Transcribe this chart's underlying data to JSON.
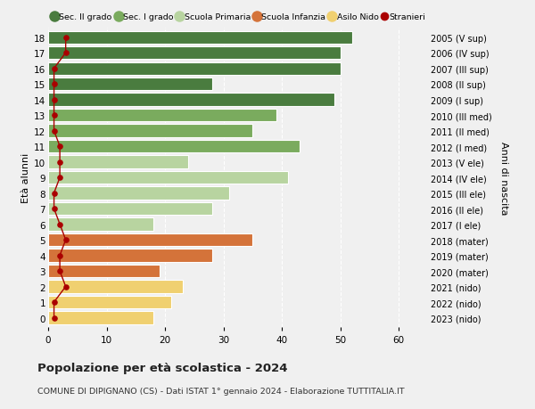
{
  "ages": [
    18,
    17,
    16,
    15,
    14,
    13,
    12,
    11,
    10,
    9,
    8,
    7,
    6,
    5,
    4,
    3,
    2,
    1,
    0
  ],
  "right_labels": [
    "2005 (V sup)",
    "2006 (IV sup)",
    "2007 (III sup)",
    "2008 (II sup)",
    "2009 (I sup)",
    "2010 (III med)",
    "2011 (II med)",
    "2012 (I med)",
    "2013 (V ele)",
    "2014 (IV ele)",
    "2015 (III ele)",
    "2016 (II ele)",
    "2017 (I ele)",
    "2018 (mater)",
    "2019 (mater)",
    "2020 (mater)",
    "2021 (nido)",
    "2022 (nido)",
    "2023 (nido)"
  ],
  "bar_values": [
    52,
    50,
    50,
    28,
    49,
    39,
    35,
    43,
    24,
    41,
    31,
    28,
    18,
    35,
    28,
    19,
    23,
    21,
    18
  ],
  "bar_colors": [
    "#4a7c3f",
    "#4a7c3f",
    "#4a7c3f",
    "#4a7c3f",
    "#4a7c3f",
    "#7aab5e",
    "#7aab5e",
    "#7aab5e",
    "#b8d4a0",
    "#b8d4a0",
    "#b8d4a0",
    "#b8d4a0",
    "#b8d4a0",
    "#d4733a",
    "#d4733a",
    "#d4733a",
    "#f0d070",
    "#f0d070",
    "#f0d070"
  ],
  "stranieri_values": [
    3,
    3,
    1,
    1,
    1,
    1,
    1,
    2,
    2,
    2,
    1,
    1,
    2,
    3,
    2,
    2,
    3,
    1,
    1
  ],
  "stranieri_color": "#aa0000",
  "legend_items": [
    {
      "label": "Sec. II grado",
      "color": "#4a7c3f",
      "type": "patch"
    },
    {
      "label": "Sec. I grado",
      "color": "#7aab5e",
      "type": "patch"
    },
    {
      "label": "Scuola Primaria",
      "color": "#b8d4a0",
      "type": "patch"
    },
    {
      "label": "Scuola Infanzia",
      "color": "#d4733a",
      "type": "patch"
    },
    {
      "label": "Asilo Nido",
      "color": "#f0d070",
      "type": "patch"
    },
    {
      "label": "Stranieri",
      "color": "#aa0000",
      "type": "line"
    }
  ],
  "ylabel_left": "Età alunni",
  "ylabel_right": "Anni di nascita",
  "xlim": [
    0,
    65
  ],
  "xticks": [
    0,
    10,
    20,
    30,
    40,
    50,
    60
  ],
  "title": "Popolazione per età scolastica - 2024",
  "subtitle": "COMUNE DI DIPIGNANO (CS) - Dati ISTAT 1° gennaio 2024 - Elaborazione TUTTITALIA.IT",
  "bg_color": "#f0f0f0",
  "bar_height": 0.82
}
